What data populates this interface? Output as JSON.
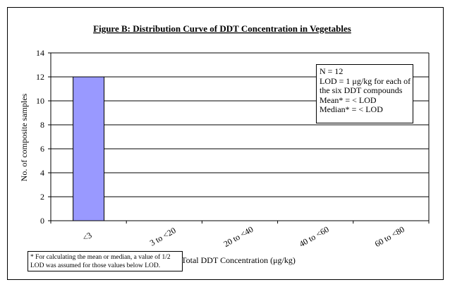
{
  "chart_data": {
    "type": "bar",
    "title": "Figure B: Distribution Curve of DDT Concentration in Vegetables",
    "xlabel": "Total DDT Concentration (μg/kg)",
    "ylabel": "No. of composite samples",
    "categories": [
      "<3",
      "3 to <20",
      "20 to <40",
      "40 to <60",
      "60 to <80"
    ],
    "values": [
      12,
      0,
      0,
      0,
      0
    ],
    "ylim": [
      0,
      14
    ],
    "yticks": [
      0,
      2,
      4,
      6,
      8,
      10,
      12,
      14
    ],
    "grid": true,
    "bar_color": "#9999ff",
    "stats_box": {
      "lines": [
        "N = 12",
        "LOD = 1 μg/kg for each of",
        "the six DDT compounds",
        "Mean* = < LOD",
        "Median* = < LOD"
      ]
    },
    "footnote": "* For calculating the mean or median, a value of 1/2 LOD was assumed for those values below LOD."
  }
}
